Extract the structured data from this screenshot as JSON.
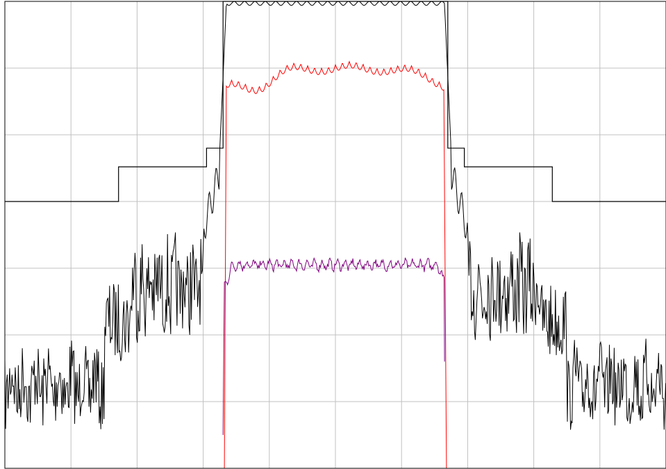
{
  "chart_data": {
    "type": "line",
    "title": "",
    "xlabel": "",
    "ylabel": "",
    "xlim": [
      -5,
      5
    ],
    "ylim": [
      -7,
      0
    ],
    "grid": true,
    "legend": "none",
    "colors": {
      "grid": "#c0c0c0",
      "frame": "#000000",
      "mask": "#000000",
      "series_black": "#000000",
      "series_red": "#ff0000",
      "series_purple": "#800080"
    },
    "mask": {
      "name": "spectral mask",
      "points": [
        [
          -5.0,
          -3.0
        ],
        [
          -3.28,
          -3.0
        ],
        [
          -3.28,
          -2.48
        ],
        [
          -1.95,
          -2.48
        ],
        [
          -1.95,
          -2.2
        ],
        [
          -1.7,
          -2.2
        ],
        [
          -1.7,
          0.0
        ],
        [
          1.7,
          0.0
        ],
        [
          1.7,
          -2.2
        ],
        [
          1.95,
          -2.2
        ],
        [
          1.95,
          -2.48
        ],
        [
          3.28,
          -2.48
        ],
        [
          3.28,
          -3.0
        ],
        [
          5.0,
          -3.0
        ]
      ]
    },
    "series": [
      {
        "key": "black",
        "band_level": -0.03,
        "band_edge": 1.65,
        "shoulder_level": -3.6,
        "floor_level": -5.2,
        "noise": 0.55
      },
      {
        "key": "red",
        "band_level": -0.95,
        "band_edge": 1.65,
        "ripple": 0.15,
        "floor_level": -7.0
      },
      {
        "key": "purple",
        "band_level": -3.95,
        "band_edge": 1.65,
        "ripple": 0.05,
        "start": -1.7,
        "end": 1.65,
        "dip_level": -6.5
      }
    ]
  }
}
